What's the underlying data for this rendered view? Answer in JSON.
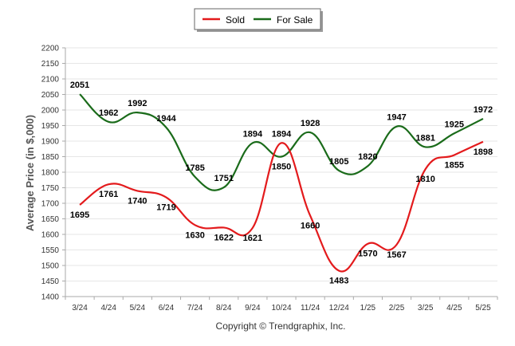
{
  "chart_data": {
    "type": "line",
    "categories": [
      "3/24",
      "4/24",
      "5/24",
      "6/24",
      "7/24",
      "8/24",
      "9/24",
      "10/24",
      "11/24",
      "12/24",
      "1/25",
      "2/25",
      "3/25",
      "4/25",
      "5/25"
    ],
    "series": [
      {
        "name": "Sold",
        "color": "#e31a1c",
        "values": [
          1695,
          1761,
          1740,
          1719,
          1630,
          1622,
          1621,
          1894,
          1660,
          1483,
          1570,
          1567,
          1810,
          1855,
          1898
        ]
      },
      {
        "name": "For Sale",
        "color": "#1a6b1a",
        "values": [
          2051,
          1962,
          1992,
          1944,
          1785,
          1751,
          1894,
          1850,
          1928,
          1805,
          1820,
          1947,
          1881,
          1925,
          1972
        ]
      }
    ],
    "ylabel": "Average Price (in $,000)",
    "xlabel": "",
    "ylim": [
      1400,
      2200
    ],
    "yticks": [
      1400,
      1450,
      1500,
      1550,
      1600,
      1650,
      1700,
      1750,
      1800,
      1850,
      1900,
      1950,
      2000,
      2050,
      2100,
      2150,
      2200
    ],
    "grid": true,
    "legend_position": "top-center",
    "footer": "Copyright © Trendgraphix, Inc."
  }
}
